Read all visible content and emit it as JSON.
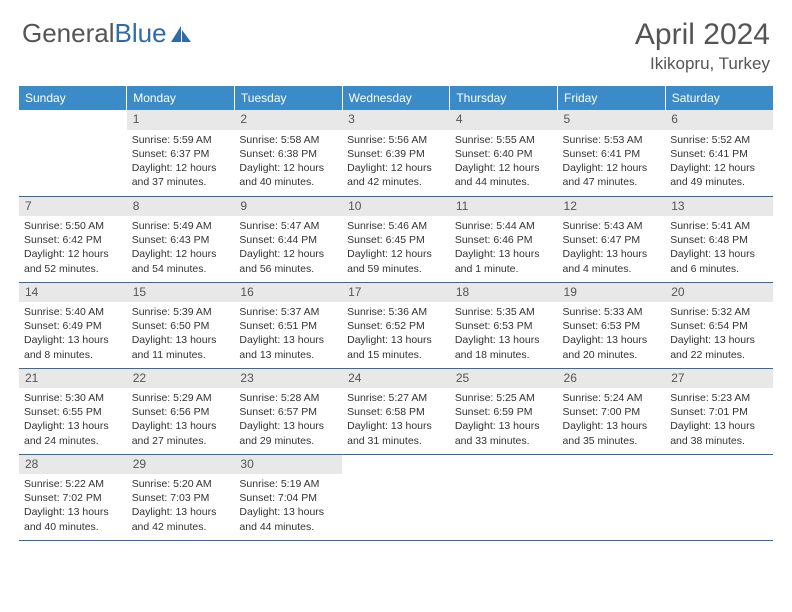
{
  "logo": {
    "part1": "General",
    "part2": "Blue"
  },
  "title": "April 2024",
  "location": "Ikikopru, Turkey",
  "day_headers": [
    "Sunday",
    "Monday",
    "Tuesday",
    "Wednesday",
    "Thursday",
    "Friday",
    "Saturday"
  ],
  "colors": {
    "header_bg": "#3b8bc9",
    "header_text": "#ffffff",
    "rule": "#2e6ca8",
    "daynum_bg": "#e8e8e8",
    "text": "#333333",
    "title_text": "#555555"
  },
  "weeks": [
    [
      {
        "n": "",
        "lines": []
      },
      {
        "n": "1",
        "lines": [
          "Sunrise: 5:59 AM",
          "Sunset: 6:37 PM",
          "Daylight: 12 hours",
          "and 37 minutes."
        ]
      },
      {
        "n": "2",
        "lines": [
          "Sunrise: 5:58 AM",
          "Sunset: 6:38 PM",
          "Daylight: 12 hours",
          "and 40 minutes."
        ]
      },
      {
        "n": "3",
        "lines": [
          "Sunrise: 5:56 AM",
          "Sunset: 6:39 PM",
          "Daylight: 12 hours",
          "and 42 minutes."
        ]
      },
      {
        "n": "4",
        "lines": [
          "Sunrise: 5:55 AM",
          "Sunset: 6:40 PM",
          "Daylight: 12 hours",
          "and 44 minutes."
        ]
      },
      {
        "n": "5",
        "lines": [
          "Sunrise: 5:53 AM",
          "Sunset: 6:41 PM",
          "Daylight: 12 hours",
          "and 47 minutes."
        ]
      },
      {
        "n": "6",
        "lines": [
          "Sunrise: 5:52 AM",
          "Sunset: 6:41 PM",
          "Daylight: 12 hours",
          "and 49 minutes."
        ]
      }
    ],
    [
      {
        "n": "7",
        "lines": [
          "Sunrise: 5:50 AM",
          "Sunset: 6:42 PM",
          "Daylight: 12 hours",
          "and 52 minutes."
        ]
      },
      {
        "n": "8",
        "lines": [
          "Sunrise: 5:49 AM",
          "Sunset: 6:43 PM",
          "Daylight: 12 hours",
          "and 54 minutes."
        ]
      },
      {
        "n": "9",
        "lines": [
          "Sunrise: 5:47 AM",
          "Sunset: 6:44 PM",
          "Daylight: 12 hours",
          "and 56 minutes."
        ]
      },
      {
        "n": "10",
        "lines": [
          "Sunrise: 5:46 AM",
          "Sunset: 6:45 PM",
          "Daylight: 12 hours",
          "and 59 minutes."
        ]
      },
      {
        "n": "11",
        "lines": [
          "Sunrise: 5:44 AM",
          "Sunset: 6:46 PM",
          "Daylight: 13 hours",
          "and 1 minute."
        ]
      },
      {
        "n": "12",
        "lines": [
          "Sunrise: 5:43 AM",
          "Sunset: 6:47 PM",
          "Daylight: 13 hours",
          "and 4 minutes."
        ]
      },
      {
        "n": "13",
        "lines": [
          "Sunrise: 5:41 AM",
          "Sunset: 6:48 PM",
          "Daylight: 13 hours",
          "and 6 minutes."
        ]
      }
    ],
    [
      {
        "n": "14",
        "lines": [
          "Sunrise: 5:40 AM",
          "Sunset: 6:49 PM",
          "Daylight: 13 hours",
          "and 8 minutes."
        ]
      },
      {
        "n": "15",
        "lines": [
          "Sunrise: 5:39 AM",
          "Sunset: 6:50 PM",
          "Daylight: 13 hours",
          "and 11 minutes."
        ]
      },
      {
        "n": "16",
        "lines": [
          "Sunrise: 5:37 AM",
          "Sunset: 6:51 PM",
          "Daylight: 13 hours",
          "and 13 minutes."
        ]
      },
      {
        "n": "17",
        "lines": [
          "Sunrise: 5:36 AM",
          "Sunset: 6:52 PM",
          "Daylight: 13 hours",
          "and 15 minutes."
        ]
      },
      {
        "n": "18",
        "lines": [
          "Sunrise: 5:35 AM",
          "Sunset: 6:53 PM",
          "Daylight: 13 hours",
          "and 18 minutes."
        ]
      },
      {
        "n": "19",
        "lines": [
          "Sunrise: 5:33 AM",
          "Sunset: 6:53 PM",
          "Daylight: 13 hours",
          "and 20 minutes."
        ]
      },
      {
        "n": "20",
        "lines": [
          "Sunrise: 5:32 AM",
          "Sunset: 6:54 PM",
          "Daylight: 13 hours",
          "and 22 minutes."
        ]
      }
    ],
    [
      {
        "n": "21",
        "lines": [
          "Sunrise: 5:30 AM",
          "Sunset: 6:55 PM",
          "Daylight: 13 hours",
          "and 24 minutes."
        ]
      },
      {
        "n": "22",
        "lines": [
          "Sunrise: 5:29 AM",
          "Sunset: 6:56 PM",
          "Daylight: 13 hours",
          "and 27 minutes."
        ]
      },
      {
        "n": "23",
        "lines": [
          "Sunrise: 5:28 AM",
          "Sunset: 6:57 PM",
          "Daylight: 13 hours",
          "and 29 minutes."
        ]
      },
      {
        "n": "24",
        "lines": [
          "Sunrise: 5:27 AM",
          "Sunset: 6:58 PM",
          "Daylight: 13 hours",
          "and 31 minutes."
        ]
      },
      {
        "n": "25",
        "lines": [
          "Sunrise: 5:25 AM",
          "Sunset: 6:59 PM",
          "Daylight: 13 hours",
          "and 33 minutes."
        ]
      },
      {
        "n": "26",
        "lines": [
          "Sunrise: 5:24 AM",
          "Sunset: 7:00 PM",
          "Daylight: 13 hours",
          "and 35 minutes."
        ]
      },
      {
        "n": "27",
        "lines": [
          "Sunrise: 5:23 AM",
          "Sunset: 7:01 PM",
          "Daylight: 13 hours",
          "and 38 minutes."
        ]
      }
    ],
    [
      {
        "n": "28",
        "lines": [
          "Sunrise: 5:22 AM",
          "Sunset: 7:02 PM",
          "Daylight: 13 hours",
          "and 40 minutes."
        ]
      },
      {
        "n": "29",
        "lines": [
          "Sunrise: 5:20 AM",
          "Sunset: 7:03 PM",
          "Daylight: 13 hours",
          "and 42 minutes."
        ]
      },
      {
        "n": "30",
        "lines": [
          "Sunrise: 5:19 AM",
          "Sunset: 7:04 PM",
          "Daylight: 13 hours",
          "and 44 minutes."
        ]
      },
      {
        "n": "",
        "lines": []
      },
      {
        "n": "",
        "lines": []
      },
      {
        "n": "",
        "lines": []
      },
      {
        "n": "",
        "lines": []
      }
    ]
  ]
}
